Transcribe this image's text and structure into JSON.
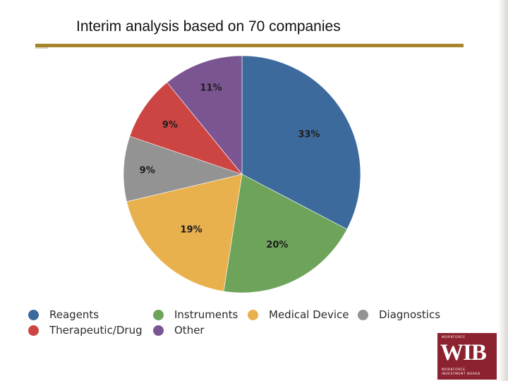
{
  "slide": {
    "title": "Interim analysis based on 70 companies",
    "accent_color": "#a8852c"
  },
  "chart_data": {
    "type": "pie",
    "title": "",
    "slices": [
      {
        "label": "Reagents",
        "value": 33,
        "display": "33%",
        "color": "#3d6a9c"
      },
      {
        "label": "Instruments",
        "value": 20,
        "display": "20%",
        "color": "#6ea35a"
      },
      {
        "label": "Medical Device",
        "value": 19,
        "display": "19%",
        "color": "#e9b04e"
      },
      {
        "label": "Diagnostics",
        "value": 9,
        "display": "9%",
        "color": "#939393"
      },
      {
        "label": "Therapeutic/Drug",
        "value": 9,
        "display": "9%",
        "color": "#cd4542"
      },
      {
        "label": "Other",
        "value": 11,
        "display": "11%",
        "color": "#7b5592"
      }
    ],
    "legend_order": [
      "Reagents",
      "Instruments",
      "Medical Device",
      "Diagnostics",
      "Therapeutic/Drug",
      "Other"
    ],
    "legend_placement": "bottom",
    "start_angle": "12 o'clock",
    "direction": "clockwise"
  },
  "logo": {
    "top_text": "WORKFORCE",
    "main_text": "WIB",
    "bottom_line_1": "WORKFORCE",
    "bottom_line_2": "INVESTMENT BOARD",
    "color": "#8c2230"
  }
}
